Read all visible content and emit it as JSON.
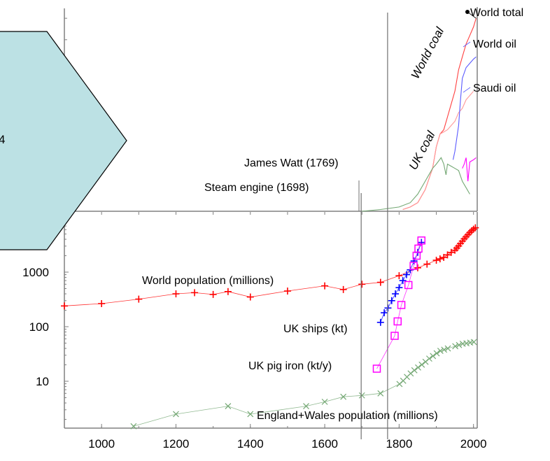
{
  "chart_data": [
    {
      "panel": "upper",
      "type": "line",
      "series": [
        {
          "name": "World total",
          "color": "#ff4040",
          "x": [
            1810,
            1830,
            1850,
            1870,
            1890,
            1900,
            1910,
            1920,
            1930,
            1940,
            1950,
            1960,
            1970,
            1980,
            1990,
            2000,
            2007
          ],
          "y": [
            0.04,
            0.1,
            0.2,
            0.5,
            1.0,
            1.5,
            1.8,
            1.9,
            2.2,
            2.5,
            2.8,
            3.3,
            3.6,
            3.9,
            4.1,
            4.3,
            4.5
          ]
        },
        {
          "name": "World coal",
          "color": "#ff9a9a",
          "x": [
            1810,
            1830,
            1850,
            1870,
            1890,
            1900,
            1910,
            1920,
            1930,
            1940,
            1950,
            1960,
            1970,
            1980,
            1990,
            2000
          ],
          "y": [
            0.04,
            0.1,
            0.2,
            0.5,
            1.0,
            1.5,
            1.8,
            1.85,
            1.9,
            2.0,
            2.1,
            2.3,
            2.4,
            2.6,
            2.7,
            2.8
          ]
        },
        {
          "name": "World oil",
          "color": "#5a5aff",
          "x": [
            1945,
            1950,
            1960,
            1965,
            1970,
            1980,
            1990,
            2000,
            2007
          ],
          "y": [
            1.2,
            1.4,
            2.0,
            2.6,
            3.1,
            3.35,
            3.45,
            3.55,
            3.6
          ]
        },
        {
          "name": "Saudi oil",
          "color": "#ff00ff",
          "x": [
            1970,
            1975,
            1980,
            1985,
            1990,
            2000,
            2007
          ],
          "y": [
            1.0,
            1.1,
            1.25,
            0.7,
            1.15,
            1.2,
            1.25
          ]
        },
        {
          "name": "UK coal",
          "color": "#74a874",
          "x": [
            1700,
            1750,
            1800,
            1830,
            1850,
            1870,
            1890,
            1900,
            1913,
            1920,
            1926,
            1930,
            1940,
            1950,
            1960,
            1970,
            1980,
            1990
          ],
          "y": [
            0.0,
            0.04,
            0.1,
            0.2,
            0.4,
            0.7,
            1.0,
            1.1,
            1.25,
            1.1,
            0.85,
            1.1,
            1.05,
            1.0,
            0.95,
            0.7,
            0.55,
            0.4
          ]
        }
      ],
      "annotations": [
        "World total",
        "World oil",
        "Saudi oil",
        "World coal",
        "UK coal",
        "James Watt (1769)",
        "Steam engine (1698)"
      ],
      "vertical_markers_years": [
        1698,
        1769
      ]
    },
    {
      "panel": "lower",
      "type": "scatter",
      "y_scale": "log",
      "xlim": [
        900,
        2010
      ],
      "x_ticks": [
        "1000",
        "1200",
        "1400",
        "1600",
        "1800",
        "2000"
      ],
      "y_ticks": [
        "10",
        "100",
        "1000"
      ],
      "series": [
        {
          "name": "World population (millions)",
          "marker": "+",
          "color": "#ff0000",
          "x": [
            900,
            1000,
            1100,
            1200,
            1250,
            1300,
            1340,
            1400,
            1500,
            1600,
            1650,
            1700,
            1750,
            1800,
            1850,
            1875,
            1900,
            1910,
            1920,
            1930,
            1940,
            1950,
            1955,
            1960,
            1965,
            1970,
            1975,
            1980,
            1985,
            1990,
            1995,
            2000,
            2005
          ],
          "y": [
            240,
            265,
            320,
            400,
            420,
            390,
            440,
            350,
            450,
            560,
            480,
            600,
            650,
            860,
            1200,
            1400,
            1650,
            1750,
            1860,
            2070,
            2300,
            2520,
            2760,
            3020,
            3340,
            3700,
            4070,
            4440,
            4850,
            5310,
            5720,
            6120,
            6500
          ]
        },
        {
          "name": "UK ships (kt)",
          "marker": "+",
          "color": "#0000ff",
          "x": [
            1750,
            1760,
            1770,
            1780,
            1790,
            1800,
            1810,
            1820,
            1830,
            1840,
            1850,
            1860
          ],
          "y": [
            120,
            180,
            220,
            300,
            400,
            520,
            700,
            900,
            1100,
            1600,
            2300,
            3500
          ]
        },
        {
          "name": "UK pig iron (kt/y)",
          "marker": "square",
          "color": "#ff00ff",
          "x": [
            1740,
            1788,
            1796,
            1806,
            1825,
            1839,
            1847,
            1852,
            1860
          ],
          "y": [
            17,
            68,
            125,
            250,
            580,
            1300,
            2000,
            2700,
            3800
          ]
        },
        {
          "name": "England+Wales population (millions)",
          "marker": "x",
          "color": "#74a874",
          "x": [
            1086,
            1200,
            1340,
            1400,
            1550,
            1600,
            1650,
            1700,
            1750,
            1801,
            1811,
            1821,
            1831,
            1841,
            1851,
            1861,
            1871,
            1881,
            1891,
            1901,
            1911,
            1921,
            1931,
            1951,
            1961,
            1971,
            1981,
            1991,
            2001
          ],
          "y": [
            1.5,
            2.5,
            3.5,
            2.5,
            3.5,
            4.2,
            5.2,
            5.5,
            6.0,
            8.9,
            10.2,
            12.0,
            13.9,
            15.9,
            17.9,
            20.1,
            22.7,
            26.0,
            29.0,
            32.5,
            36.1,
            37.9,
            40.0,
            43.8,
            46.1,
            48.7,
            49.6,
            51.1,
            52.4
          ]
        }
      ],
      "annotations": [
        "World population (millions)",
        "UK ships (kt)",
        "UK pig iron (kt/y)",
        "England+Wales population (millions)"
      ]
    }
  ],
  "overlay": {
    "shape": "hexagon-arrow",
    "fill": "#bce1e4",
    "label": "4"
  }
}
